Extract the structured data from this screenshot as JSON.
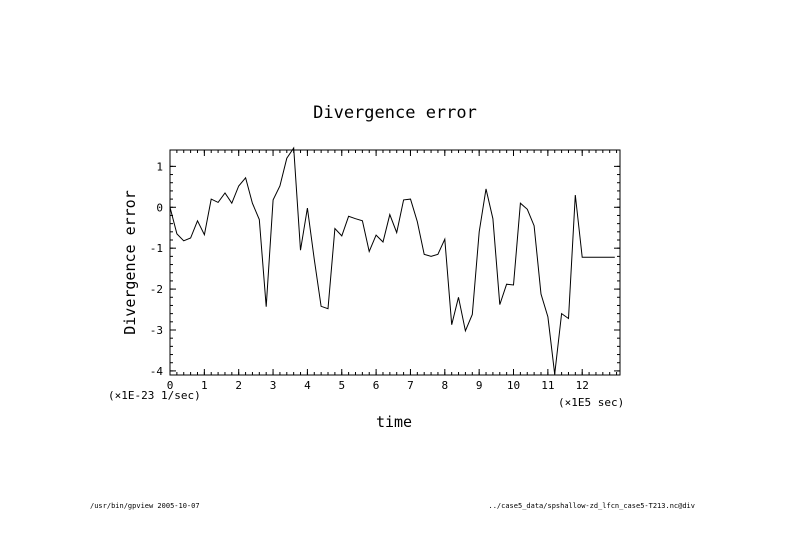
{
  "chart_data": {
    "type": "line",
    "title": "Divergence error",
    "xlabel": "time",
    "ylabel": "Divergence error",
    "x_unit": "(×1E5 sec)",
    "y_unit": "(×1E-23 1/sec)",
    "xlim": [
      0,
      13.1
    ],
    "ylim": [
      -4.1,
      1.4
    ],
    "x_ticks": [
      0,
      1,
      2,
      3,
      4,
      5,
      6,
      7,
      8,
      9,
      10,
      11,
      12
    ],
    "y_ticks": [
      1,
      0,
      -1,
      -2,
      -3,
      -4
    ],
    "grid": false,
    "series": [
      {
        "x": [
          0,
          0.2,
          0.4,
          0.6,
          0.8,
          1.0,
          1.2,
          1.4,
          1.6,
          1.8,
          2.0,
          2.2,
          2.4,
          2.6,
          2.8,
          3.0,
          3.2,
          3.4,
          3.6,
          3.8,
          4.0,
          4.2,
          4.4,
          4.6,
          4.8,
          5.0,
          5.2,
          5.4,
          5.6,
          5.8,
          6.0,
          6.2,
          6.4,
          6.6,
          6.8,
          7.0,
          7.2,
          7.4,
          7.6,
          7.8,
          8.0,
          8.2,
          8.4,
          8.6,
          8.8,
          9.0,
          9.2,
          9.4,
          9.6,
          9.8,
          10.0,
          10.2,
          10.4,
          10.6,
          10.8,
          11.0,
          11.2,
          11.4,
          11.6,
          11.8,
          12.0,
          12.2,
          12.4,
          12.6,
          12.8,
          12.95
        ],
        "y": [
          0,
          -0.65,
          -0.82,
          -0.75,
          -0.33,
          -0.67,
          0.2,
          0.12,
          0.35,
          0.1,
          0.52,
          0.72,
          0.1,
          -0.3,
          -2.43,
          0.18,
          0.52,
          1.2,
          1.45,
          -1.05,
          -0.02,
          -1.28,
          -2.42,
          -2.48,
          -0.52,
          -0.7,
          -0.22,
          -0.28,
          -0.33,
          -1.08,
          -0.68,
          -0.85,
          -0.18,
          -0.62,
          0.18,
          0.2,
          -0.35,
          -1.15,
          -1.2,
          -1.15,
          -0.78,
          -2.87,
          -2.2,
          -3.02,
          -2.62,
          -0.6,
          0.45,
          -0.28,
          -2.38,
          -1.88,
          -1.9,
          0.1,
          -0.05,
          -0.45,
          -2.12,
          -2.68,
          -4.08,
          -2.6,
          -2.72,
          0.3,
          -1.22,
          -1.22,
          -1.22,
          -1.22,
          -1.22,
          -1.22
        ]
      }
    ]
  },
  "footer": {
    "left": "/usr/bin/gpview  2005-10-07",
    "right": "../case5_data/spshallow-zd_lfcn_case5-T213.nc@div"
  }
}
